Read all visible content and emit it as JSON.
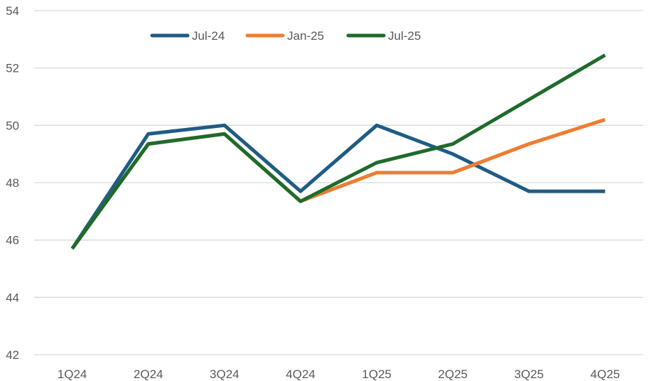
{
  "chart_data": {
    "type": "line",
    "title": "",
    "xlabel": "",
    "ylabel": "",
    "categories": [
      "1Q24",
      "2Q24",
      "3Q24",
      "4Q24",
      "1Q25",
      "2Q25",
      "3Q25",
      "4Q25"
    ],
    "ylim": [
      42,
      54
    ],
    "yticks": [
      42,
      44,
      46,
      48,
      50,
      52,
      54
    ],
    "grid": true,
    "legend_position": "top",
    "series": [
      {
        "name": "Jul-24",
        "color": "#1f5c83",
        "values": [
          45.7,
          49.7,
          50.0,
          47.7,
          50.0,
          49.0,
          47.7,
          47.7
        ]
      },
      {
        "name": "Jan-25",
        "color": "#ed7d31",
        "values": [
          45.7,
          49.35,
          49.7,
          47.35,
          48.35,
          48.35,
          49.35,
          50.2
        ]
      },
      {
        "name": "Jul-25",
        "color": "#1e6b2a",
        "values": [
          45.7,
          49.35,
          49.7,
          47.35,
          48.7,
          49.35,
          50.9,
          52.45
        ]
      }
    ]
  }
}
